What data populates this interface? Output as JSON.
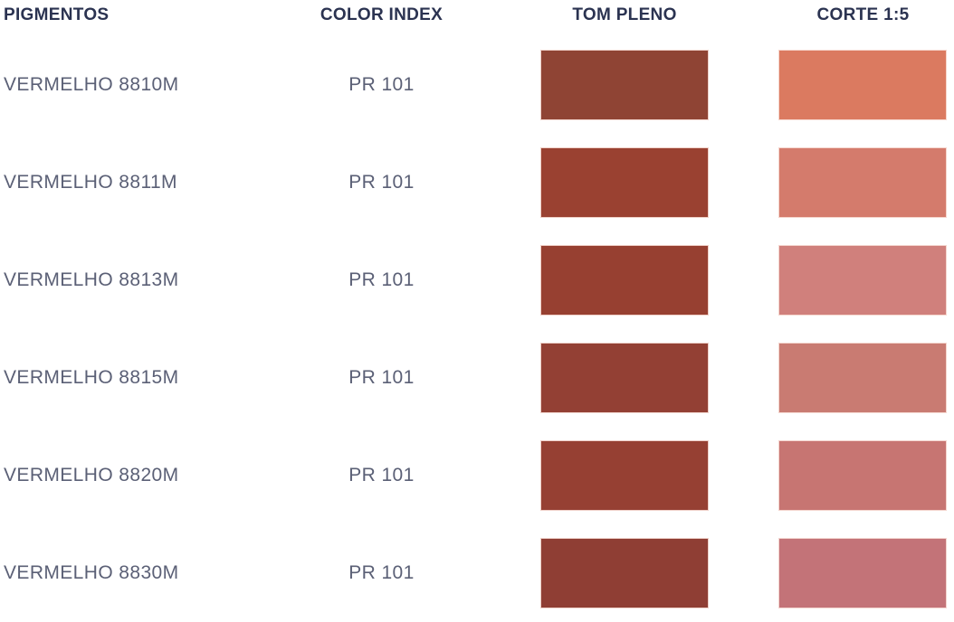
{
  "table": {
    "headers": [
      {
        "label": "PIGMENTOS"
      },
      {
        "label": "COLOR INDEX"
      },
      {
        "label": "TOM PLENO"
      },
      {
        "label": "CORTE 1:5"
      }
    ],
    "rows": [
      {
        "pigment": "VERMELHO 8810M",
        "color_index": "PR 101",
        "tom_pleno_hex": "#8F4434",
        "corte_hex": "#DB7A60"
      },
      {
        "pigment": "VERMELHO 8811M",
        "color_index": "PR 101",
        "tom_pleno_hex": "#9A4131",
        "corte_hex": "#D47B6C"
      },
      {
        "pigment": "VERMELHO 8813M",
        "color_index": "PR 101",
        "tom_pleno_hex": "#974031",
        "corte_hex": "#D0807C"
      },
      {
        "pigment": "VERMELHO 8815M",
        "color_index": "PR 101",
        "tom_pleno_hex": "#934034",
        "corte_hex": "#C97B72"
      },
      {
        "pigment": "VERMELHO 8820M",
        "color_index": "PR 101",
        "tom_pleno_hex": "#964033",
        "corte_hex": "#C77572"
      },
      {
        "pigment": "VERMELHO 8830M",
        "color_index": "PR 101",
        "tom_pleno_hex": "#8F3E34",
        "corte_hex": "#C37378"
      }
    ]
  },
  "colors": {
    "header_text": "#2B3351",
    "row_text": "#5B6076",
    "background": "#FFFFFF"
  }
}
